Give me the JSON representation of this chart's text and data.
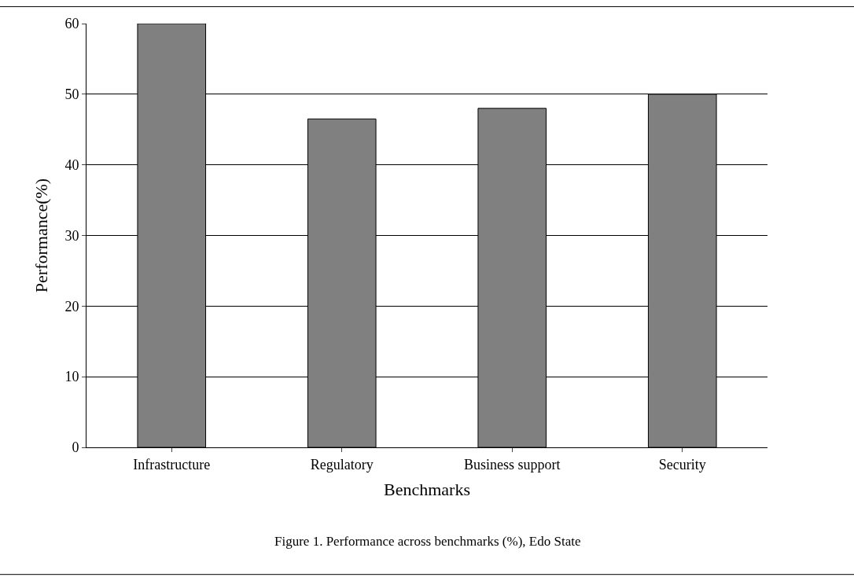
{
  "chart_data": {
    "type": "bar",
    "categories": [
      "Infrastructure",
      "Regulatory",
      "Business support",
      "Security"
    ],
    "values": [
      60,
      46.5,
      48,
      50
    ],
    "color": "#808080",
    "xlabel": "Benchmarks",
    "ylabel": "Performance(%)",
    "ylim": [
      0,
      60
    ],
    "yticks": [
      0,
      10,
      20,
      30,
      40,
      50,
      60
    ],
    "grid": "y",
    "annotations": [
      "Figure 1. Performance across benchmarks (%), Edo State"
    ]
  }
}
